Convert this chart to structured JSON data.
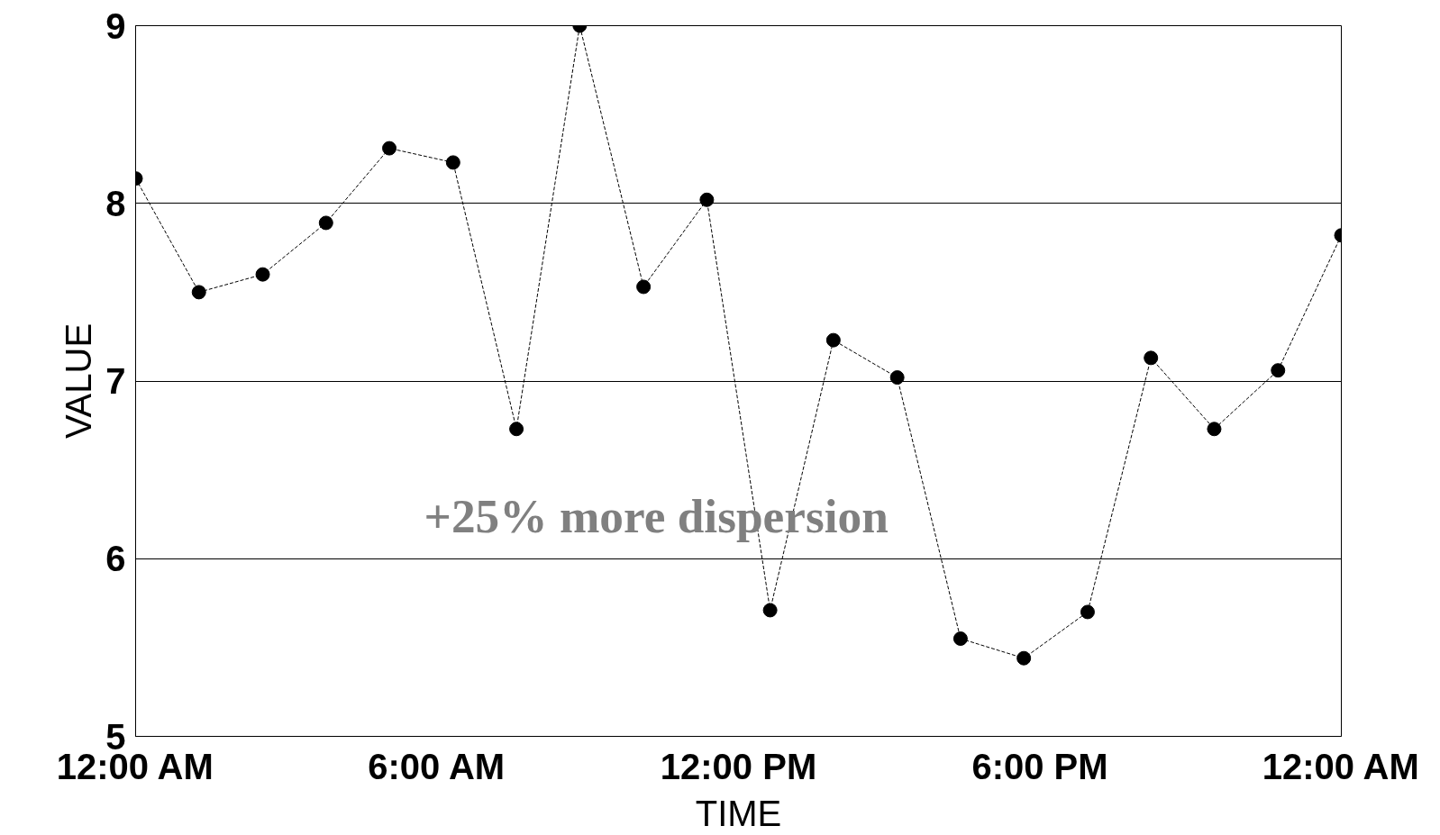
{
  "chart_data": {
    "type": "line",
    "xlabel": "TIME",
    "ylabel": "VALUE",
    "x": [
      0,
      1.26,
      2.53,
      3.79,
      5.05,
      6.32,
      7.58,
      8.84,
      10.11,
      11.37,
      12.63,
      13.89,
      15.16,
      16.42,
      17.68,
      18.95,
      20.21,
      21.47,
      22.74,
      24
    ],
    "series": [
      {
        "color": "#000000",
        "values": [
          8.14,
          7.5,
          7.6,
          7.89,
          8.31,
          8.23,
          6.73,
          9.0,
          7.53,
          8.02,
          5.71,
          7.23,
          7.02,
          5.55,
          5.44,
          5.7,
          7.13,
          6.73,
          7.06,
          7.82
        ]
      }
    ],
    "xlim": [
      0,
      24
    ],
    "xticks": [
      {
        "value": 0,
        "label": "12:00 AM"
      },
      {
        "value": 6,
        "label": "6:00 AM"
      },
      {
        "value": 12,
        "label": "12:00 PM"
      },
      {
        "value": 18,
        "label": "6:00 PM"
      },
      {
        "value": 24,
        "label": "12:00 AM"
      }
    ],
    "ylim": [
      5,
      9
    ],
    "yticks": [
      5,
      6,
      7,
      8,
      9
    ],
    "grid": "y",
    "marker": "circle",
    "line_style": "dashed",
    "annotations": [
      "+25% more dispersion"
    ]
  }
}
